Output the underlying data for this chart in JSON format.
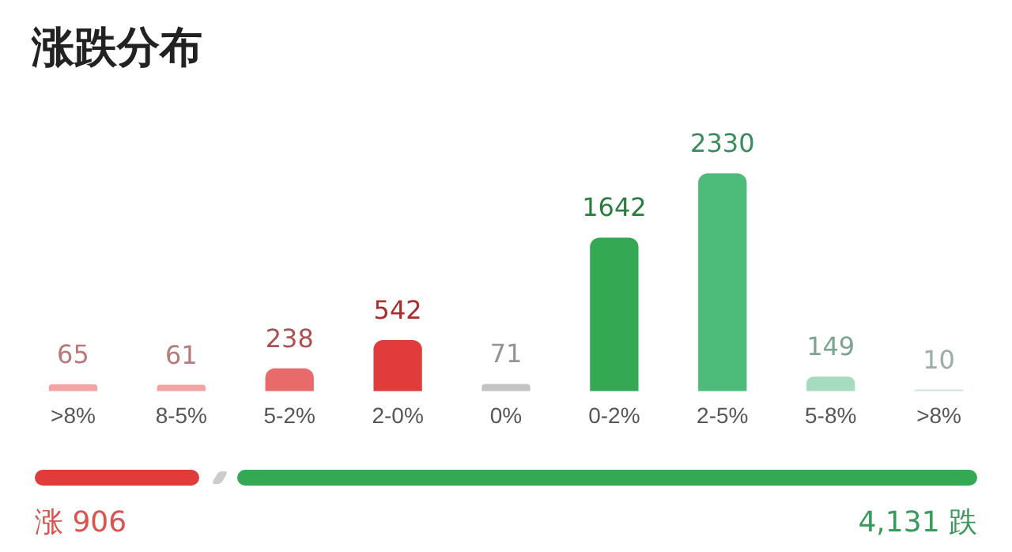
{
  "chart_data": {
    "type": "bar",
    "title": "涨跌分布",
    "categories": [
      ">8%",
      "8-5%",
      "5-2%",
      "2-0%",
      "0%",
      "0-2%",
      "2-5%",
      "5-8%",
      ">8%"
    ],
    "values": [
      65,
      61,
      238,
      542,
      71,
      1642,
      2330,
      149,
      10
    ],
    "colors": [
      "#f2a3a3",
      "#f2a3a3",
      "#e96a6a",
      "#e23b3b",
      "#c4c4c4",
      "#34a853",
      "#4dbb7a",
      "#a5dcc0",
      "#cde8da"
    ],
    "data_labels": true,
    "grid": false,
    "legend": false,
    "tick_labels": "x",
    "annotations": [
      "涨 906",
      "4,131 跌"
    ]
  }
}
